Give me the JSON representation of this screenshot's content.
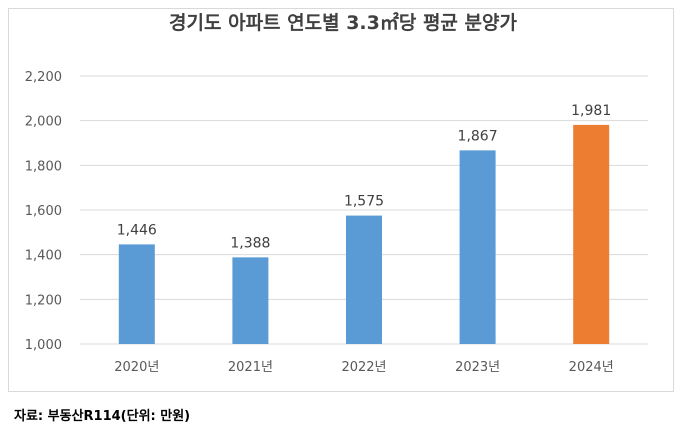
{
  "title": "경기도 아파트 연도별 3.3㎡당 평균 분양가",
  "source": "자료: 부동산R114(단위: 만원)",
  "colors": {
    "default_bar": "#5b9bd5",
    "highlight_bar": "#ed7d31",
    "grid": "#d9d9d9",
    "axis_text": "#595959",
    "label_text": "#404040"
  },
  "chart_data": {
    "type": "bar",
    "categories": [
      "2020년",
      "2021년",
      "2022년",
      "2023년",
      "2024년"
    ],
    "values": [
      1446,
      1388,
      1575,
      1867,
      1981
    ],
    "value_labels": [
      "1,446",
      "1,388",
      "1,575",
      "1,867",
      "1,981"
    ],
    "highlight_index": 4,
    "ylim": [
      1000,
      2200
    ],
    "yticks": [
      1000,
      1200,
      1400,
      1600,
      1800,
      2000,
      2200
    ],
    "ytick_labels": [
      "1,000",
      "1,200",
      "1,400",
      "1,600",
      "1,800",
      "2,000",
      "2,200"
    ],
    "grid": true,
    "legend": "none"
  }
}
